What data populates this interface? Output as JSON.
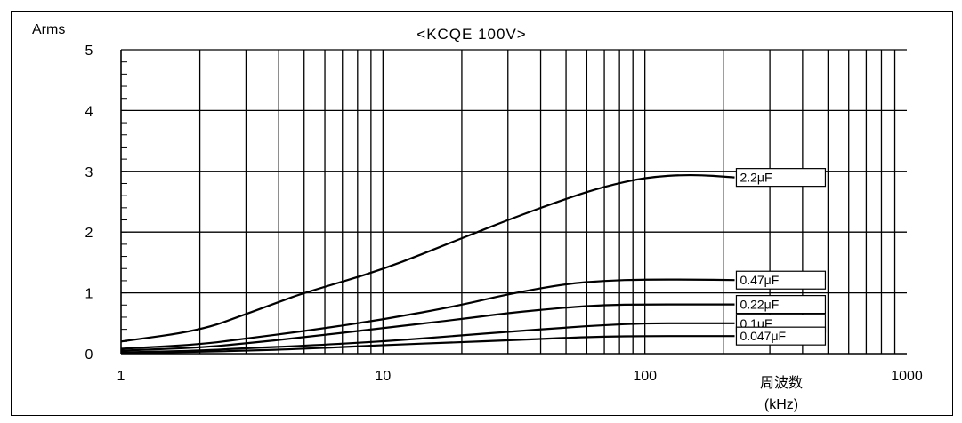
{
  "chart_data": {
    "type": "line",
    "title": "<KCQE 100V>",
    "ylabel": "Arms",
    "xlabel_line1": "周波数",
    "xlabel_line2": "(kHz)",
    "x_scale": "log",
    "xlim": [
      1,
      1000
    ],
    "ylim": [
      0,
      5
    ],
    "x_tick_labels": [
      "1",
      "10",
      "100",
      "1000"
    ],
    "y_tick_labels": [
      "0",
      "1",
      "2",
      "3",
      "4",
      "5"
    ],
    "grid": true,
    "series": [
      {
        "name": "2.2μF",
        "x": [
          1,
          2,
          3,
          4,
          5,
          10,
          20,
          30,
          50,
          70,
          100,
          150,
          220
        ],
        "y": [
          0.2,
          0.38,
          0.65,
          0.85,
          1.0,
          1.38,
          1.9,
          2.2,
          2.55,
          2.75,
          2.9,
          2.95,
          2.9
        ]
      },
      {
        "name": "0.47μF",
        "x": [
          1,
          2,
          3,
          5,
          10,
          20,
          30,
          50,
          70,
          100,
          150,
          220
        ],
        "y": [
          0.08,
          0.15,
          0.25,
          0.37,
          0.56,
          0.8,
          0.98,
          1.15,
          1.2,
          1.22,
          1.22,
          1.21
        ]
      },
      {
        "name": "0.22μF",
        "x": [
          1,
          2,
          3,
          5,
          10,
          20,
          30,
          50,
          70,
          100,
          150,
          220
        ],
        "y": [
          0.05,
          0.1,
          0.17,
          0.27,
          0.42,
          0.57,
          0.67,
          0.76,
          0.8,
          0.81,
          0.81,
          0.81
        ]
      },
      {
        "name": "0.1μF",
        "x": [
          1,
          2,
          3,
          5,
          10,
          20,
          30,
          50,
          70,
          100,
          150,
          220
        ],
        "y": [
          0.02,
          0.05,
          0.09,
          0.13,
          0.2,
          0.3,
          0.36,
          0.43,
          0.47,
          0.5,
          0.5,
          0.5
        ]
      },
      {
        "name": "0.047μF",
        "x": [
          1,
          2,
          3,
          5,
          10,
          20,
          30,
          50,
          70,
          100,
          150,
          220
        ],
        "y": [
          0.01,
          0.03,
          0.05,
          0.08,
          0.14,
          0.19,
          0.22,
          0.26,
          0.28,
          0.29,
          0.29,
          0.29
        ]
      }
    ]
  }
}
